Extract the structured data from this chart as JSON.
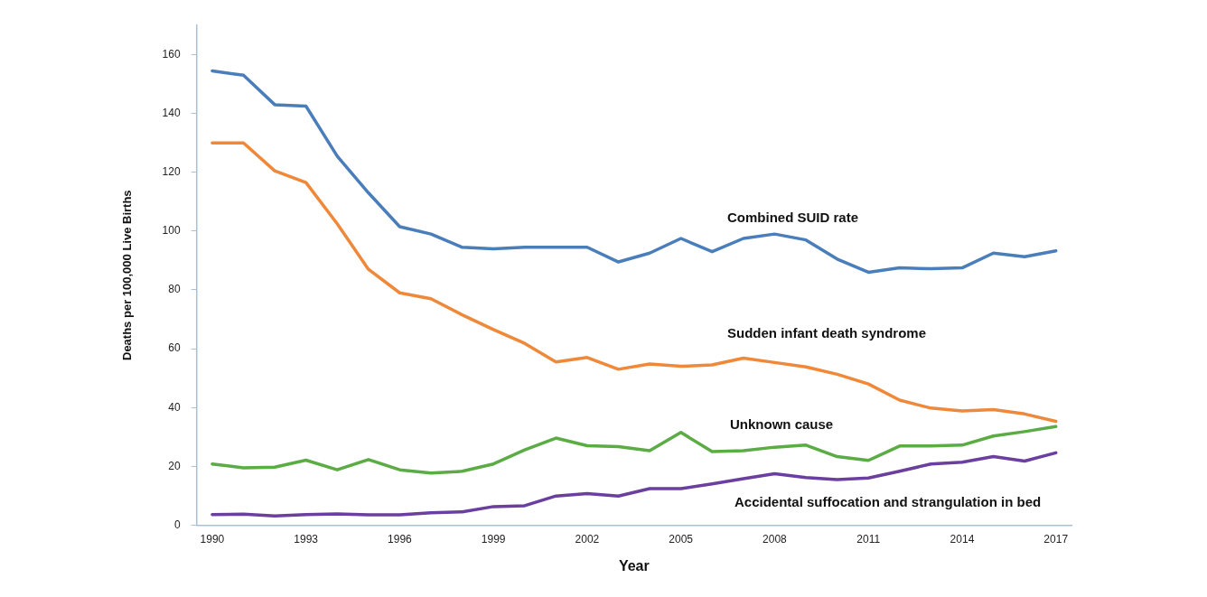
{
  "chart_data": {
    "type": "line",
    "xlabel": "Year",
    "ylabel": "Deaths per 100,000 Live Births",
    "categories": [
      "1990",
      null,
      null,
      "1993",
      null,
      null,
      "1996",
      null,
      null,
      "1999",
      null,
      null,
      "2002",
      null,
      null,
      "2005",
      null,
      null,
      "2008",
      null,
      null,
      "2011",
      null,
      null,
      "2014",
      null,
      null,
      "2017"
    ],
    "ylim": [
      0,
      170
    ],
    "yticks": [
      0,
      20,
      40,
      60,
      80,
      100,
      120,
      140,
      160
    ],
    "grid": false,
    "legend": false,
    "marker": "none",
    "line_style": "solid",
    "series": [
      {
        "name": "Combined SUID rate",
        "color": "#4a7ebb",
        "values": [
          154.5,
          153,
          143,
          142.5,
          125.5,
          113,
          101.5,
          99,
          94.5,
          94,
          94.5,
          94.5,
          94.5,
          89.5,
          92.5,
          97.5,
          93,
          97.5,
          99,
          97,
          90.5,
          86,
          87.5,
          87.2,
          87.5,
          92.5,
          91.3,
          93.3
        ]
      },
      {
        "name": "Sudden infant death syndrome",
        "color": "#f0883a",
        "values": [
          130,
          130,
          120.5,
          116.5,
          102.5,
          87,
          79,
          77,
          71.5,
          66.5,
          61.8,
          55.5,
          57,
          53,
          54.8,
          54,
          54.5,
          56.8,
          55.3,
          53.8,
          51.3,
          48,
          42.5,
          39.8,
          38.8,
          39.3,
          37.8,
          35.3
        ]
      },
      {
        "name": "Unknown cause",
        "color": "#5bac45",
        "values": [
          20.8,
          19.5,
          19.7,
          22.1,
          18.8,
          22.3,
          18.8,
          17.7,
          18.3,
          20.8,
          25.6,
          29.6,
          27,
          26.7,
          25.3,
          31.5,
          25,
          25.3,
          26.5,
          27.2,
          23.3,
          22,
          26.9,
          26.9,
          27.2,
          30.3,
          31.8,
          33.5
        ]
      },
      {
        "name": "Accidental suffocation and strangulation in bed",
        "color": "#6a3fa0",
        "values": [
          3.6,
          3.7,
          3.1,
          3.6,
          3.8,
          3.5,
          3.5,
          4.2,
          4.5,
          6.3,
          6.6,
          9.9,
          10.7,
          9.9,
          12.4,
          12.4,
          14,
          15.8,
          17.5,
          16.2,
          15.5,
          16,
          18.3,
          20.8,
          21.4,
          23.3,
          21.8,
          24.6
        ]
      }
    ]
  }
}
